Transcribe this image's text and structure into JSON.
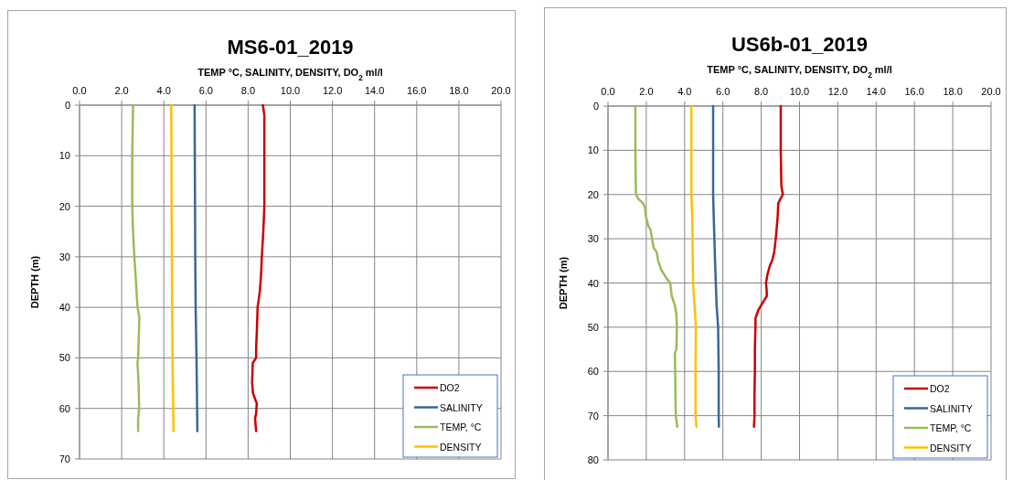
{
  "chart_data": [
    {
      "type": "line",
      "title": "MS6-01_2019",
      "xlabel": "TEMP °C, SALINITY, DENSITY, DO$_{2}$ ml/l",
      "ylabel": "DEPTH (m)",
      "xlim": [
        0,
        20
      ],
      "xticks": [
        {
          "value": 0,
          "label": "0.0"
        },
        {
          "value": 2,
          "label": "2.0"
        },
        {
          "value": 4,
          "label": "4.0"
        },
        {
          "value": 6,
          "label": "6.0"
        },
        {
          "value": 8,
          "label": "8.0"
        },
        {
          "value": 10,
          "label": "10.0"
        },
        {
          "value": 12,
          "label": "12.0"
        },
        {
          "value": 14,
          "label": "14.0"
        },
        {
          "value": 16,
          "label": "16.0"
        },
        {
          "value": 18,
          "label": "18.0"
        },
        {
          "value": 20,
          "label": "20.0"
        }
      ],
      "ylim": [
        70,
        0
      ],
      "yticks": [
        0,
        10,
        20,
        30,
        40,
        50,
        60,
        70
      ],
      "grid": true,
      "legend": "bottom right",
      "marker": "none",
      "line_style": "solid",
      "series": [
        {
          "name": "DO2",
          "color": "#cc0000",
          "x": [
            8.7,
            8.77,
            8.77,
            8.77,
            8.72,
            8.65,
            8.62,
            8.59,
            8.55,
            8.45,
            8.41,
            8.38,
            8.38,
            8.22,
            8.19,
            8.23,
            8.41,
            8.38,
            8.33,
            8.38
          ],
          "values": [
            0,
            2,
            10,
            20,
            25,
            30,
            33,
            35,
            37,
            40,
            45,
            48,
            50,
            51,
            55,
            57,
            59,
            61,
            62,
            64.5
          ]
        },
        {
          "name": "SALINITY",
          "color": "#3a6698",
          "x": [
            5.46,
            5.49,
            5.51,
            5.55,
            5.58,
            5.59
          ],
          "values": [
            0,
            30,
            40,
            50,
            60,
            64.5
          ]
        },
        {
          "name": "TEMP, °C",
          "color": "#9bbb59",
          "x": [
            2.54,
            2.5,
            2.5,
            2.54,
            2.6,
            2.68,
            2.75,
            2.84,
            2.78,
            2.75,
            2.8,
            2.83,
            2.78,
            2.78
          ],
          "values": [
            0,
            10,
            20,
            25,
            30,
            35,
            40,
            42,
            50,
            51,
            55,
            60,
            62,
            64.5
          ]
        },
        {
          "name": "DENSITY",
          "color": "#ffc000",
          "x": [
            4.35,
            4.38,
            4.41,
            4.46
          ],
          "values": [
            0,
            30,
            50,
            64.5
          ]
        }
      ]
    },
    {
      "type": "line",
      "title": "US6b-01_2019",
      "xlabel": "TEMP °C, SALINITY, DENSITY, DO$_{2}$ ml/l",
      "ylabel": "DEPTH (m)",
      "xlim": [
        0,
        20
      ],
      "xticks": [
        {
          "value": 0,
          "label": "0.0"
        },
        {
          "value": 2,
          "label": "2.0"
        },
        {
          "value": 4,
          "label": "4.0"
        },
        {
          "value": 6,
          "label": "6.0"
        },
        {
          "value": 8,
          "label": "8.0"
        },
        {
          "value": 10,
          "label": "10.0"
        },
        {
          "value": 12,
          "label": "12.0"
        },
        {
          "value": 14,
          "label": "14.0"
        },
        {
          "value": 16,
          "label": "16.0"
        },
        {
          "value": 18,
          "label": "18.0"
        },
        {
          "value": 20,
          "label": "20.0"
        }
      ],
      "ylim": [
        80,
        0
      ],
      "yticks": [
        0,
        10,
        20,
        30,
        40,
        50,
        60,
        70,
        80
      ],
      "grid": true,
      "legend": "bottom right",
      "marker": "none",
      "line_style": "solid",
      "series": [
        {
          "name": "DO2",
          "color": "#cc0000",
          "x": [
            9.02,
            9.02,
            9.05,
            9.13,
            9.0,
            8.89,
            8.86,
            8.76,
            8.68,
            8.57,
            8.46,
            8.33,
            8.25,
            8.29,
            8.29,
            8.14,
            7.86,
            7.7,
            7.7,
            7.67,
            7.67,
            7.65,
            7.65,
            7.62
          ],
          "values": [
            0,
            10,
            18,
            20,
            21,
            22,
            25,
            30,
            33,
            35,
            36,
            38,
            40,
            42,
            43,
            44,
            46,
            48,
            50,
            55,
            60,
            65,
            70,
            72.5
          ]
        },
        {
          "name": "SALINITY",
          "color": "#3a6698",
          "x": [
            5.49,
            5.49,
            5.52,
            5.59,
            5.63,
            5.67,
            5.75,
            5.78,
            5.78,
            5.79
          ],
          "values": [
            0,
            20,
            25,
            35,
            40,
            45,
            50,
            60,
            70,
            72.5
          ]
        },
        {
          "name": "TEMP, °C",
          "color": "#9bbb59",
          "x": [
            1.43,
            1.43,
            1.46,
            1.59,
            1.83,
            1.94,
            1.98,
            2.1,
            2.22,
            2.3,
            2.38,
            2.54,
            2.62,
            2.78,
            3.06,
            3.25,
            3.33,
            3.49,
            3.57,
            3.6,
            3.57,
            3.49,
            3.51,
            3.52,
            3.54,
            3.62
          ],
          "values": [
            0,
            10,
            20,
            21,
            22,
            23,
            25,
            27,
            28,
            30,
            32,
            33,
            35,
            37,
            39,
            40,
            43,
            45,
            47,
            50,
            55,
            56,
            60,
            65,
            70,
            72.5
          ]
        },
        {
          "name": "DENSITY",
          "color": "#ffc000",
          "x": [
            4.35,
            4.35,
            4.4,
            4.44,
            4.52,
            4.59,
            4.57,
            4.57,
            4.62
          ],
          "values": [
            0,
            20,
            25,
            40,
            45,
            50,
            60,
            70,
            72.5
          ]
        }
      ]
    }
  ]
}
